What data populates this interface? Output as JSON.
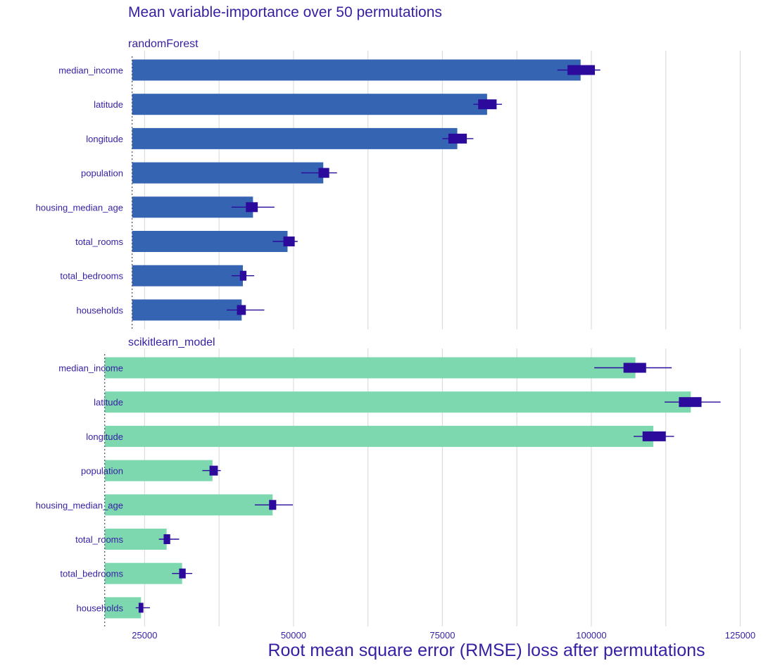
{
  "chart_data": {
    "type": "bar",
    "title": "Mean variable-importance over 50 permutations",
    "xlabel": "Root mean square error (RMSE) loss after permutations",
    "ylabel": "",
    "xlim": [
      22000,
      130500
    ],
    "xticks": [
      25000,
      50000,
      75000,
      100000,
      125000
    ],
    "tick_labels": [
      "25000",
      "50000",
      "75000",
      "100000",
      "125000"
    ],
    "grid": true,
    "categories": [
      "median_income",
      "latitude",
      "longitude",
      "population",
      "housing_median_age",
      "total_rooms",
      "total_bedrooms",
      "households"
    ],
    "panels": [
      {
        "name": "randomForest",
        "color": "#3564b2",
        "baseline": 22900,
        "values": [
          98200,
          82500,
          77500,
          55000,
          43200,
          49000,
          41500,
          41300
        ],
        "box_low": [
          96000,
          81000,
          76000,
          54200,
          42000,
          48300,
          41000,
          40500
        ],
        "box_high": [
          100600,
          84100,
          79100,
          56000,
          44000,
          50200,
          42100,
          42000
        ],
        "whisker_low": [
          94300,
          80200,
          75000,
          51300,
          39600,
          46500,
          39600,
          38800
        ],
        "whisker_high": [
          101500,
          85000,
          80200,
          57300,
          46800,
          50700,
          43400,
          45100
        ]
      },
      {
        "name": "scikitlearn_model",
        "color": "#7dd8b0",
        "baseline": 18300,
        "values": [
          107400,
          116700,
          110400,
          36400,
          46500,
          28700,
          31300,
          24400
        ],
        "box_low": [
          105400,
          114700,
          108600,
          35900,
          45900,
          28200,
          30800,
          24000
        ],
        "box_high": [
          109200,
          118500,
          112500,
          37300,
          47100,
          29300,
          31900,
          24800
        ],
        "whisker_low": [
          100500,
          112300,
          107100,
          34700,
          43500,
          27400,
          29600,
          23500
        ],
        "whisker_high": [
          113500,
          121700,
          113900,
          37800,
          49900,
          30800,
          33000,
          25900
        ]
      }
    ]
  },
  "colors": {
    "text": "#371ea3",
    "box": "#2c0a9c",
    "grid": "#dddddd",
    "baseline": "#555a6e"
  }
}
